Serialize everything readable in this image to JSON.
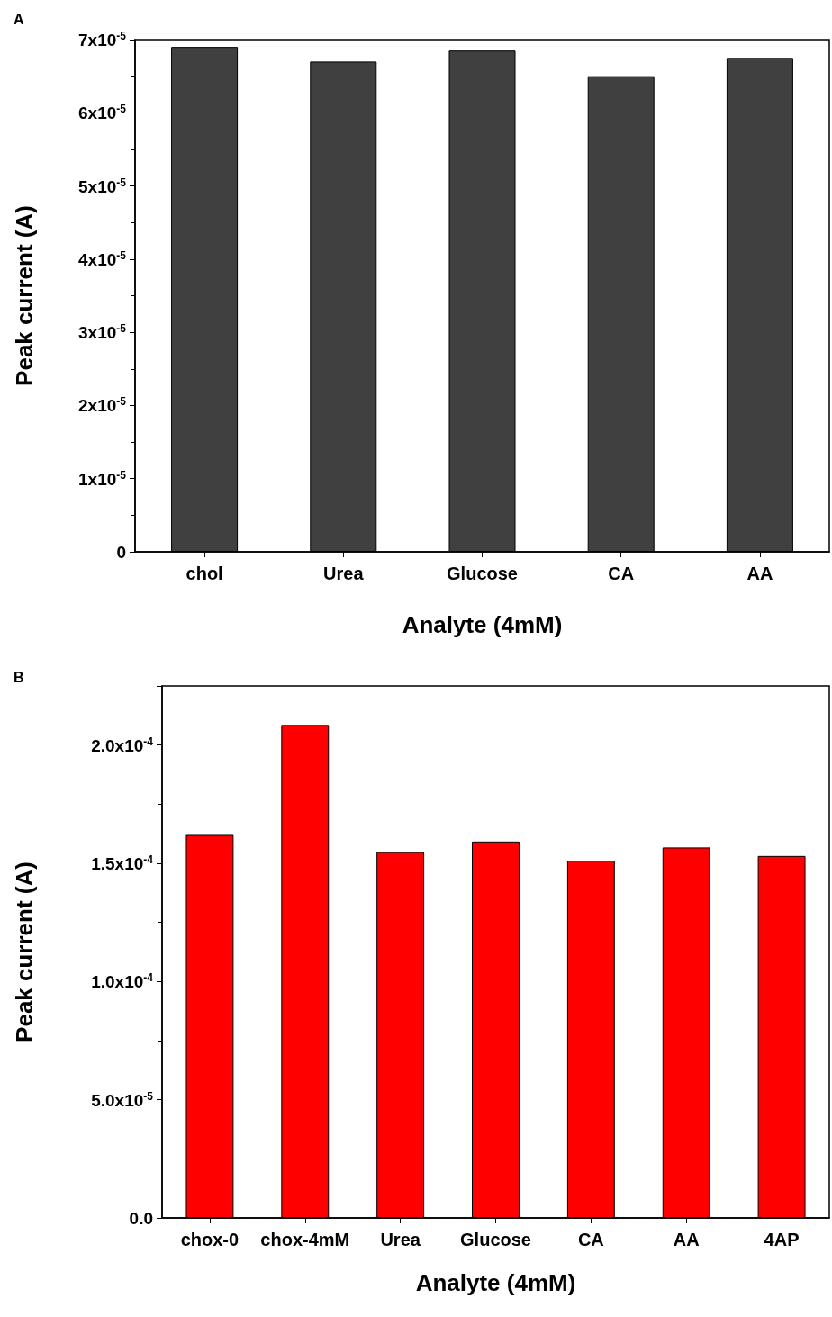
{
  "chart_data": [
    {
      "type": "bar",
      "title": "A",
      "xlabel": "Analyte (4mM)",
      "ylabel": "Peak current (A)",
      "categories": [
        "chol",
        "Urea",
        "Glucose",
        "CA",
        "AA"
      ],
      "values": [
        6.9e-05,
        6.7e-05,
        6.85e-05,
        6.5e-05,
        6.75e-05
      ],
      "color": "#404040",
      "ylim": [
        0,
        7e-05
      ],
      "yticks": [
        0,
        {
          "value": 1e-05,
          "label": "1x10$^{-5}$"
        },
        {
          "value": 2e-05,
          "label": "2x10$^{-5}$"
        },
        {
          "value": 3e-05,
          "label": "3x10$^{-5}$"
        },
        {
          "value": 4e-05,
          "label": "4x10$^{-5}$"
        },
        {
          "value": 5e-05,
          "label": "5x10$^{-5}$"
        },
        {
          "value": 6e-05,
          "label": "6x10$^{-5}$"
        },
        {
          "value": 7e-05,
          "label": "7x10$^{-5}$"
        }
      ],
      "grid": false
    },
    {
      "type": "bar",
      "title": "B",
      "xlabel": "Analyte (4mM)",
      "ylabel": "Peak current (A)",
      "categories": [
        "chox-0",
        "chox-4mM",
        "Urea",
        "Glucose",
        "CA",
        "AA",
        "4AP"
      ],
      "values": [
        0.000162,
        0.0002085,
        0.0001547,
        0.0001592,
        0.0001511,
        0.0001567,
        0.0001531
      ],
      "color": "#ff0000",
      "ylim": [
        0,
        0.000225
      ],
      "yticks": [
        {
          "value": 0,
          "label": "0.0"
        },
        {
          "value": 5e-05,
          "label": "5.0x10$^{-5}$"
        },
        {
          "value": 0.0001,
          "label": "1.0x10$^{-4}$"
        },
        {
          "value": 0.00015,
          "label": "1.5x10$^{-4}$"
        },
        {
          "value": 0.0002,
          "label": "2.0x10$^{-4}$"
        }
      ],
      "grid": false
    }
  ]
}
